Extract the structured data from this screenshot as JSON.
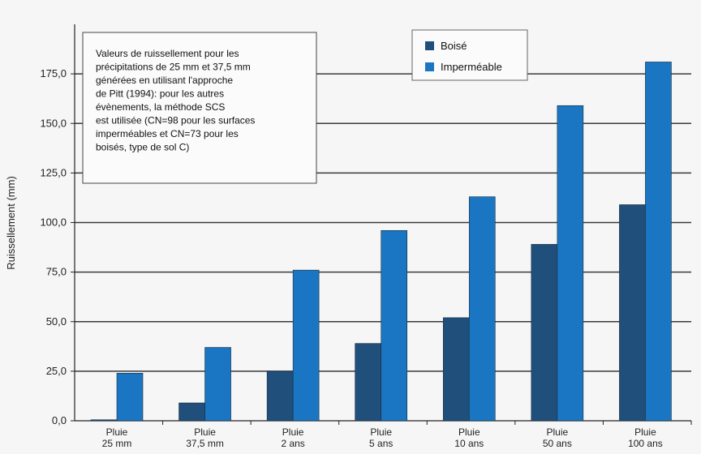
{
  "chart_data": {
    "type": "bar",
    "categories": [
      [
        "Pluie",
        "25 mm"
      ],
      [
        "Pluie",
        "37,5 mm"
      ],
      [
        "Pluie",
        "2 ans"
      ],
      [
        "Pluie",
        "5 ans"
      ],
      [
        "Pluie",
        "10 ans"
      ],
      [
        "Pluie",
        "50 ans"
      ],
      [
        "Pluie",
        "100 ans"
      ]
    ],
    "series": [
      {
        "name": "Boisé",
        "color": "#1f4f7a",
        "values": [
          0.5,
          9,
          25,
          39,
          52,
          89,
          109
        ]
      },
      {
        "name": "Imperméable",
        "color": "#1a76c2",
        "values": [
          24,
          37,
          76,
          96,
          113,
          159,
          181
        ]
      }
    ],
    "ylabel": "Ruissellement (mm)",
    "ylim": [
      0,
      200
    ],
    "yticks": [
      "0,0",
      "25,0",
      "50,0",
      "75,0",
      "100,0",
      "125,0",
      "150,0",
      "175,0"
    ],
    "ytick_values": [
      0,
      25,
      50,
      75,
      100,
      125,
      150,
      175
    ],
    "grid": true,
    "legend_position": "top-right",
    "annotation": [
      "Valeurs de ruissellement pour les",
      "précipitations de 25 mm et 37,5 mm",
      "générées en utilisant l'approche",
      "de Pitt (1994): pour les autres",
      " évènements, la méthode SCS",
      "est utilisée (CN=98 pour les surfaces",
      " imperméables et CN=73 pour les",
      "boisés, type de sol C)"
    ]
  }
}
